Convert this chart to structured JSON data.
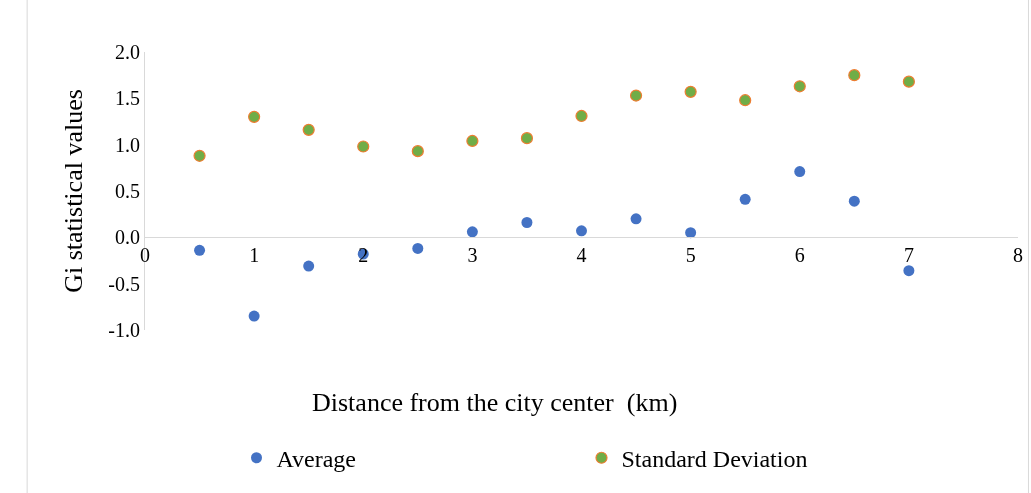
{
  "chart_data": {
    "type": "scatter",
    "xlabel": "Distance from the city center  (km)",
    "ylabel": "Gi statistical values",
    "x": [
      0.5,
      1,
      1.5,
      2,
      2.5,
      3,
      3.5,
      4,
      4.5,
      5,
      5.5,
      6,
      6.5,
      7
    ],
    "series": [
      {
        "name": "Average",
        "color": "#4472c4",
        "values": [
          -0.14,
          -0.85,
          -0.31,
          -0.18,
          -0.12,
          0.06,
          0.16,
          0.07,
          0.2,
          0.05,
          0.41,
          0.71,
          0.39,
          -0.36
        ]
      },
      {
        "name": "Standard Deviation",
        "color": "#70ad47",
        "values": [
          0.88,
          1.3,
          1.16,
          0.98,
          0.93,
          1.04,
          1.07,
          1.31,
          1.53,
          1.57,
          1.48,
          1.63,
          1.75,
          1.68
        ]
      }
    ],
    "xlim": [
      0,
      8
    ],
    "xticks": [
      0,
      1,
      2,
      3,
      4,
      5,
      6,
      7,
      8
    ],
    "ylim": [
      -1,
      2
    ],
    "yticks": [
      {
        "value": -1,
        "label": "-1.0"
      },
      {
        "value": -0.5,
        "label": "-0.5"
      },
      {
        "value": 0,
        "label": "0.0"
      },
      {
        "value": 0.5,
        "label": "0.5"
      },
      {
        "value": 1,
        "label": "1.0"
      },
      {
        "value": 1.5,
        "label": "1.5"
      },
      {
        "value": 2,
        "label": "2.0"
      }
    ],
    "grid": false,
    "legend": "bottom",
    "marker": "circle"
  }
}
